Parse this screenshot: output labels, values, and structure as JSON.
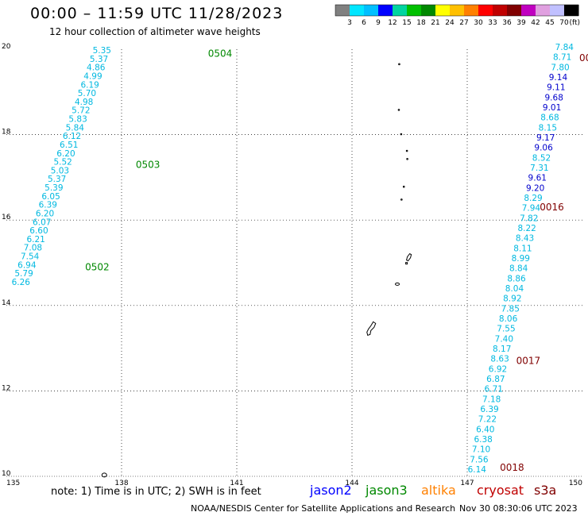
{
  "header": {
    "title": "00:00 – 11:59 UTC 11/28/2023",
    "subtitle": "12 hour collection of altimeter wave heights"
  },
  "colorbar": {
    "labels": [
      "3",
      "6",
      "9",
      "12",
      "15",
      "18",
      "21",
      "24",
      "27",
      "30",
      "33",
      "36",
      "39",
      "42",
      "45",
      "70"
    ],
    "unit": "(ft)",
    "colors": [
      "#808080",
      "#00e6ff",
      "#00bfff",
      "#0000ff",
      "#00d4a0",
      "#00c000",
      "#008800",
      "#ffff00",
      "#ffc000",
      "#ff8000",
      "#ff0000",
      "#c00000",
      "#800000",
      "#c000c0",
      "#e0a0e0",
      "#c0c0ff",
      "#000000"
    ]
  },
  "axes": {
    "x_ticks": [
      "135",
      "138",
      "141",
      "144",
      "147",
      "150"
    ],
    "y_ticks": [
      "20",
      "18",
      "16",
      "14",
      "12",
      "10"
    ]
  },
  "footer": {
    "note": "note:  1) Time is in UTC;  2) SWH is in feet",
    "credit": "NOAA/NESDIS Center for Satellite Applications and Research",
    "timestamp": "Nov 30 08:30:06 UTC 2023",
    "satellites": [
      {
        "name": "jason2",
        "color": "#0000ff"
      },
      {
        "name": "jason3",
        "color": "#008800"
      },
      {
        "name": "altika",
        "color": "#ff8000"
      },
      {
        "name": "cryosat",
        "color": "#c00000"
      },
      {
        "name": "s3a",
        "color": "#800000"
      }
    ]
  },
  "colors": {
    "cyan": "#00c8e8",
    "blue": "#0000cc",
    "green": "#008800",
    "darkred": "#800000"
  },
  "track_left": {
    "values": [
      "5.35",
      "5.37",
      "4.86",
      "4.99",
      "6.19",
      "5.70",
      "4.98",
      "5.72",
      "5.83",
      "5.84",
      "6.12",
      "6.51",
      "6.20",
      "5.52",
      "5.03",
      "5.37",
      "5.39",
      "6.05",
      "6.39",
      "6.20",
      "6.07",
      "6.60",
      "6.21",
      "7.08",
      "7.54",
      "6.94",
      "5.79",
      "6.26"
    ],
    "times": [
      {
        "label": "0504",
        "lat": 19.9
      },
      {
        "label": "0503",
        "lat": 17.3
      },
      {
        "label": "0502",
        "lat": 14.9
      }
    ]
  },
  "track_right": {
    "values": [
      "7.84",
      "8.71",
      "7.80",
      "9.14",
      "9.11",
      "9.68",
      "9.01",
      "8.68",
      "8.15",
      "9.17",
      "9.06",
      "8.52",
      "7.31",
      "9.61",
      "9.20",
      "8.29",
      "7.94",
      "7.82",
      "8.22",
      "8.43",
      "8.11",
      "8.99",
      "8.84",
      "8.86",
      "8.04",
      "8.92",
      "7.85",
      "8.06",
      "7.55",
      "7.40",
      "8.17",
      "8.63",
      "6.92",
      "6.87",
      "6.71",
      "7.18",
      "6.39",
      "7.22",
      "6.40",
      "6.38",
      "7.10",
      "7.56",
      "6.14"
    ],
    "times": [
      {
        "label": "0016",
        "lat": 16.3
      },
      {
        "label": "0017",
        "lat": 12.7
      },
      {
        "label": "0018",
        "lat": 10.2
      }
    ],
    "edge_label": "00"
  },
  "islands": [
    {
      "name": "Farallon de Pajaros",
      "lon": 145.23,
      "lat": 19.65
    },
    {
      "name": "Maug",
      "lon": 145.22,
      "lat": 18.58
    },
    {
      "name": "Asuncion",
      "lon": 145.28,
      "lat": 18.01
    },
    {
      "name": "Agrihan",
      "lon": 145.43,
      "lat": 17.62
    },
    {
      "name": "Pagan",
      "lon": 145.44,
      "lat": 17.43
    },
    {
      "name": "Alamagan",
      "lon": 145.35,
      "lat": 16.78
    },
    {
      "name": "Guguan",
      "lon": 145.29,
      "lat": 16.48
    },
    {
      "name": "Saipan",
      "lon": 145.44,
      "lat": 15.1
    },
    {
      "name": "Rota",
      "lon": 145.18,
      "lat": 14.5
    },
    {
      "name": "Guam",
      "lon": 144.45,
      "lat": 13.45
    },
    {
      "name": "Ngulu",
      "lon": 137.55,
      "lat": 10.03
    }
  ]
}
